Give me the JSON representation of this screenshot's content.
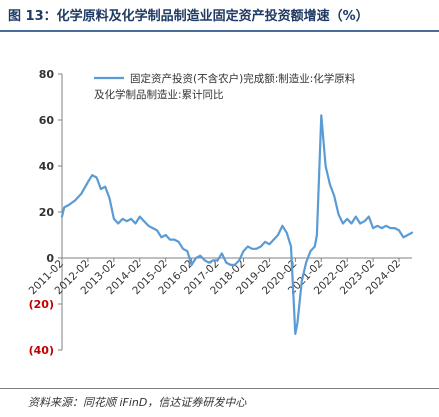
{
  "figure": {
    "title": "图 13：化学原料及化学制品制造业固定资产投资额增速（%）",
    "source": "资料来源：同花顺 iFinD，信达证券研发中心"
  },
  "chart_data": {
    "type": "line",
    "title": "",
    "xlabel": "",
    "ylabel": "",
    "ylim": [
      -40,
      80
    ],
    "yticks": [
      80,
      60,
      40,
      20,
      0,
      -20,
      -40
    ],
    "ytick_labels": [
      "80",
      "60",
      "40",
      "20",
      "0",
      "(20)",
      "(40)"
    ],
    "negative_tick_color": "#c00000",
    "xlim": [
      "2011-02",
      "2024-08"
    ],
    "xticks": [
      "2011-02",
      "2012-02",
      "2013-02",
      "2014-02",
      "2015-02",
      "2016-02",
      "2017-02",
      "2018-02",
      "2019-02",
      "2020-02",
      "2021-02",
      "2022-02",
      "2023-02",
      "2024-02"
    ],
    "grid": false,
    "legend_position": "top",
    "series": [
      {
        "name": "固定资产投资(不含农户)完成额:制造业:化学原料及化学制品制造业:累计同比",
        "color": "#5b9bd5",
        "x": [
          "2011-02",
          "2011-03",
          "2011-05",
          "2011-08",
          "2011-11",
          "2012-02",
          "2012-04",
          "2012-06",
          "2012-08",
          "2012-10",
          "2012-12",
          "2013-02",
          "2013-04",
          "2013-06",
          "2013-08",
          "2013-10",
          "2013-12",
          "2014-02",
          "2014-04",
          "2014-06",
          "2014-08",
          "2014-10",
          "2014-12",
          "2015-02",
          "2015-04",
          "2015-06",
          "2015-08",
          "2015-10",
          "2015-12",
          "2016-02",
          "2016-04",
          "2016-06",
          "2016-08",
          "2016-10",
          "2016-12",
          "2017-02",
          "2017-04",
          "2017-06",
          "2017-08",
          "2017-10",
          "2017-12",
          "2018-02",
          "2018-04",
          "2018-06",
          "2018-08",
          "2018-10",
          "2018-12",
          "2019-02",
          "2019-04",
          "2019-06",
          "2019-08",
          "2019-10",
          "2019-12",
          "2020-02",
          "2020-03",
          "2020-05",
          "2020-07",
          "2020-09",
          "2020-11",
          "2020-12",
          "2021-02",
          "2021-04",
          "2021-06",
          "2021-08",
          "2021-10",
          "2021-12",
          "2022-02",
          "2022-04",
          "2022-06",
          "2022-08",
          "2022-10",
          "2022-12",
          "2023-02",
          "2023-04",
          "2023-06",
          "2023-08",
          "2023-10",
          "2023-12",
          "2024-02",
          "2024-04",
          "2024-06",
          "2024-08"
        ],
        "values": [
          18,
          22,
          23,
          25,
          28,
          33,
          36,
          35,
          30,
          31,
          26,
          17,
          15,
          17,
          16,
          17,
          15,
          18,
          16,
          14,
          13,
          12,
          9,
          10,
          8,
          8,
          7,
          4,
          3,
          -3,
          0,
          1,
          -1,
          -2,
          -1,
          -1,
          2,
          -2,
          -3,
          -3,
          -1,
          3,
          5,
          4,
          4,
          5,
          7,
          6,
          8,
          10,
          14,
          11,
          5,
          -33,
          -28,
          -10,
          -2,
          3,
          5,
          10,
          62,
          40,
          32,
          27,
          19,
          15,
          17,
          15,
          18,
          15,
          16,
          18,
          13,
          14,
          13,
          14,
          13,
          13,
          12,
          9,
          10,
          11
        ]
      }
    ]
  }
}
